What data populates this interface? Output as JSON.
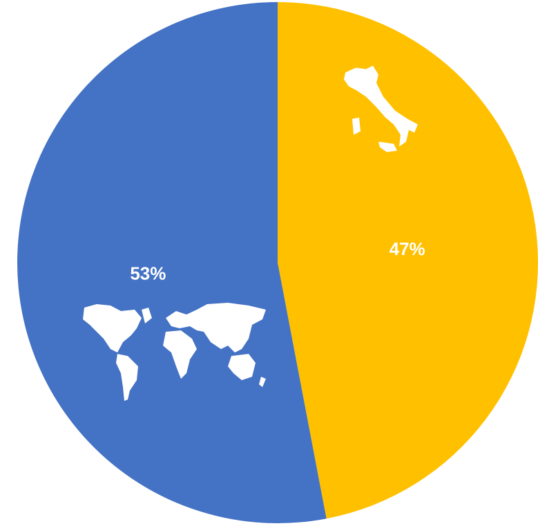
{
  "chart_data": {
    "type": "pie",
    "values": [
      47,
      53
    ],
    "value_labels": [
      "47%",
      "53%"
    ],
    "colors": [
      "#ffc000",
      "#4472c4"
    ],
    "start_angle": 0,
    "direction": "clockwise"
  }
}
